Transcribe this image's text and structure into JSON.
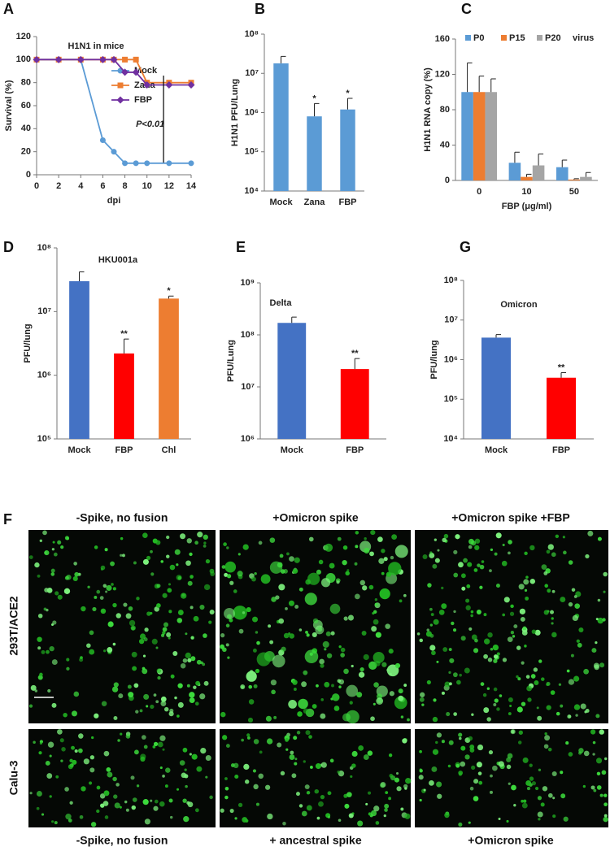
{
  "chart_data": [
    {
      "panel": "A",
      "type": "line",
      "title": "H1N1 in mice",
      "xlabel": "dpi",
      "ylabel": "Survival (%)",
      "annotation": "P<0.01",
      "x": [
        0,
        2,
        4,
        6,
        7,
        8,
        9,
        10,
        12,
        14
      ],
      "xlim": [
        0,
        14
      ],
      "xticks": [
        0,
        2,
        4,
        6,
        8,
        10,
        12,
        14
      ],
      "ylim": [
        0,
        120
      ],
      "yticks": [
        0,
        20,
        40,
        60,
        80,
        100,
        120
      ],
      "series": [
        {
          "name": "Mock",
          "color": "#5b9bd5",
          "marker": "circle",
          "values": [
            100,
            100,
            100,
            30,
            20,
            10,
            10,
            10,
            10,
            10
          ]
        },
        {
          "name": "Zana",
          "color": "#ed7d31",
          "marker": "square",
          "values": [
            100,
            100,
            100,
            100,
            100,
            100,
            100,
            80,
            80,
            80
          ]
        },
        {
          "name": "FBP",
          "color": "#7030a0",
          "marker": "diamond",
          "values": [
            100,
            100,
            100,
            100,
            100,
            89,
            89,
            78,
            78,
            78
          ]
        }
      ]
    },
    {
      "panel": "B",
      "type": "bar",
      "log_y": true,
      "ylabel": "H1N1 PFU/Lung",
      "categories": [
        "Mock",
        "Zana",
        "FBP"
      ],
      "color": "#5b9bd5",
      "values": [
        18000000,
        800000,
        1200000
      ],
      "errors": [
        9000000,
        900000,
        1100000
      ],
      "significance": [
        null,
        "*",
        "*"
      ],
      "ylim": [
        10000,
        100000000
      ],
      "yticks": [
        {
          "value": 10000,
          "label": "10⁴"
        },
        {
          "value": 100000,
          "label": "10⁵"
        },
        {
          "value": 1000000,
          "label": "10⁶"
        },
        {
          "value": 10000000,
          "label": "10⁷"
        },
        {
          "value": 100000000,
          "label": "10⁸"
        }
      ]
    },
    {
      "panel": "C",
      "type": "grouped_bar",
      "xlabel": "FBP (μg/ml)",
      "ylabel": "H1N1 RNA copy (%)",
      "legend_suffix": "virus",
      "categories": [
        "0",
        "10",
        "50"
      ],
      "ylim": [
        0,
        160
      ],
      "yticks": [
        0,
        40,
        80,
        120,
        160
      ],
      "series": [
        {
          "name": "P0",
          "color": "#5b9bd5",
          "values": [
            100,
            20,
            15
          ],
          "errors": [
            33,
            12,
            8
          ]
        },
        {
          "name": "P15",
          "color": "#ed7d31",
          "values": [
            100,
            4,
            1
          ],
          "errors": [
            18,
            3,
            1
          ]
        },
        {
          "name": "P20",
          "color": "#a5a5a5",
          "values": [
            100,
            17,
            4
          ],
          "errors": [
            15,
            13,
            5
          ]
        }
      ]
    },
    {
      "panel": "D",
      "type": "bar",
      "log_y": true,
      "title": "HKU001a",
      "ylabel": "PFU/lung",
      "categories": [
        "Mock",
        "FBP",
        "Chl"
      ],
      "colors": [
        "#4472c4",
        "#ff0000",
        "#ed7d31"
      ],
      "values": [
        30000000,
        2200000,
        16000000
      ],
      "errors": [
        12000000,
        1500000,
        1500000
      ],
      "significance": [
        null,
        "**",
        "*"
      ],
      "ylim": [
        100000,
        100000000
      ],
      "yticks": [
        {
          "value": 100000,
          "label": "10⁵"
        },
        {
          "value": 1000000,
          "label": "10⁶"
        },
        {
          "value": 10000000,
          "label": "10⁷"
        },
        {
          "value": 100000000,
          "label": "10⁸"
        }
      ]
    },
    {
      "panel": "E",
      "type": "bar",
      "log_y": true,
      "title": "Delta",
      "ylabel": "PFU/Lung",
      "categories": [
        "Mock",
        "FBP"
      ],
      "colors": [
        "#4472c4",
        "#ff0000"
      ],
      "values": [
        170000000,
        22000000
      ],
      "errors": [
        50000000,
        13000000
      ],
      "significance": [
        null,
        "**"
      ],
      "ylim": [
        1000000,
        1000000000
      ],
      "yticks": [
        {
          "value": 1000000,
          "label": "10⁶"
        },
        {
          "value": 10000000,
          "label": "10⁷"
        },
        {
          "value": 100000000,
          "label": "10⁸"
        },
        {
          "value": 1000000000,
          "label": "10⁹"
        }
      ]
    },
    {
      "panel": "G",
      "type": "bar",
      "log_y": true,
      "title": "Omicron",
      "ylabel": "PFU/lung",
      "categories": [
        "Mock",
        "FBP"
      ],
      "colors": [
        "#4472c4",
        "#ff0000"
      ],
      "values": [
        3600000,
        350000
      ],
      "errors": [
        700000,
        120000
      ],
      "significance": [
        null,
        "**"
      ],
      "ylim": [
        10000,
        100000000
      ],
      "yticks": [
        {
          "value": 10000,
          "label": "10⁴"
        },
        {
          "value": 100000,
          "label": "10⁵"
        },
        {
          "value": 1000000,
          "label": "10⁶"
        },
        {
          "value": 10000000,
          "label": "10⁷"
        },
        {
          "value": 100000000,
          "label": "10⁸"
        }
      ]
    }
  ],
  "figure_f": {
    "panel": "F",
    "top_headers": [
      "-Spike, no fusion",
      "+Omicron spike",
      "+Omicron spike +FBP"
    ],
    "row_labels": [
      "293T/ACE2",
      "Calu-3"
    ],
    "bottom_headers": [
      "-Spike, no fusion",
      "+ ancestral spike",
      "+Omicron spike"
    ]
  }
}
